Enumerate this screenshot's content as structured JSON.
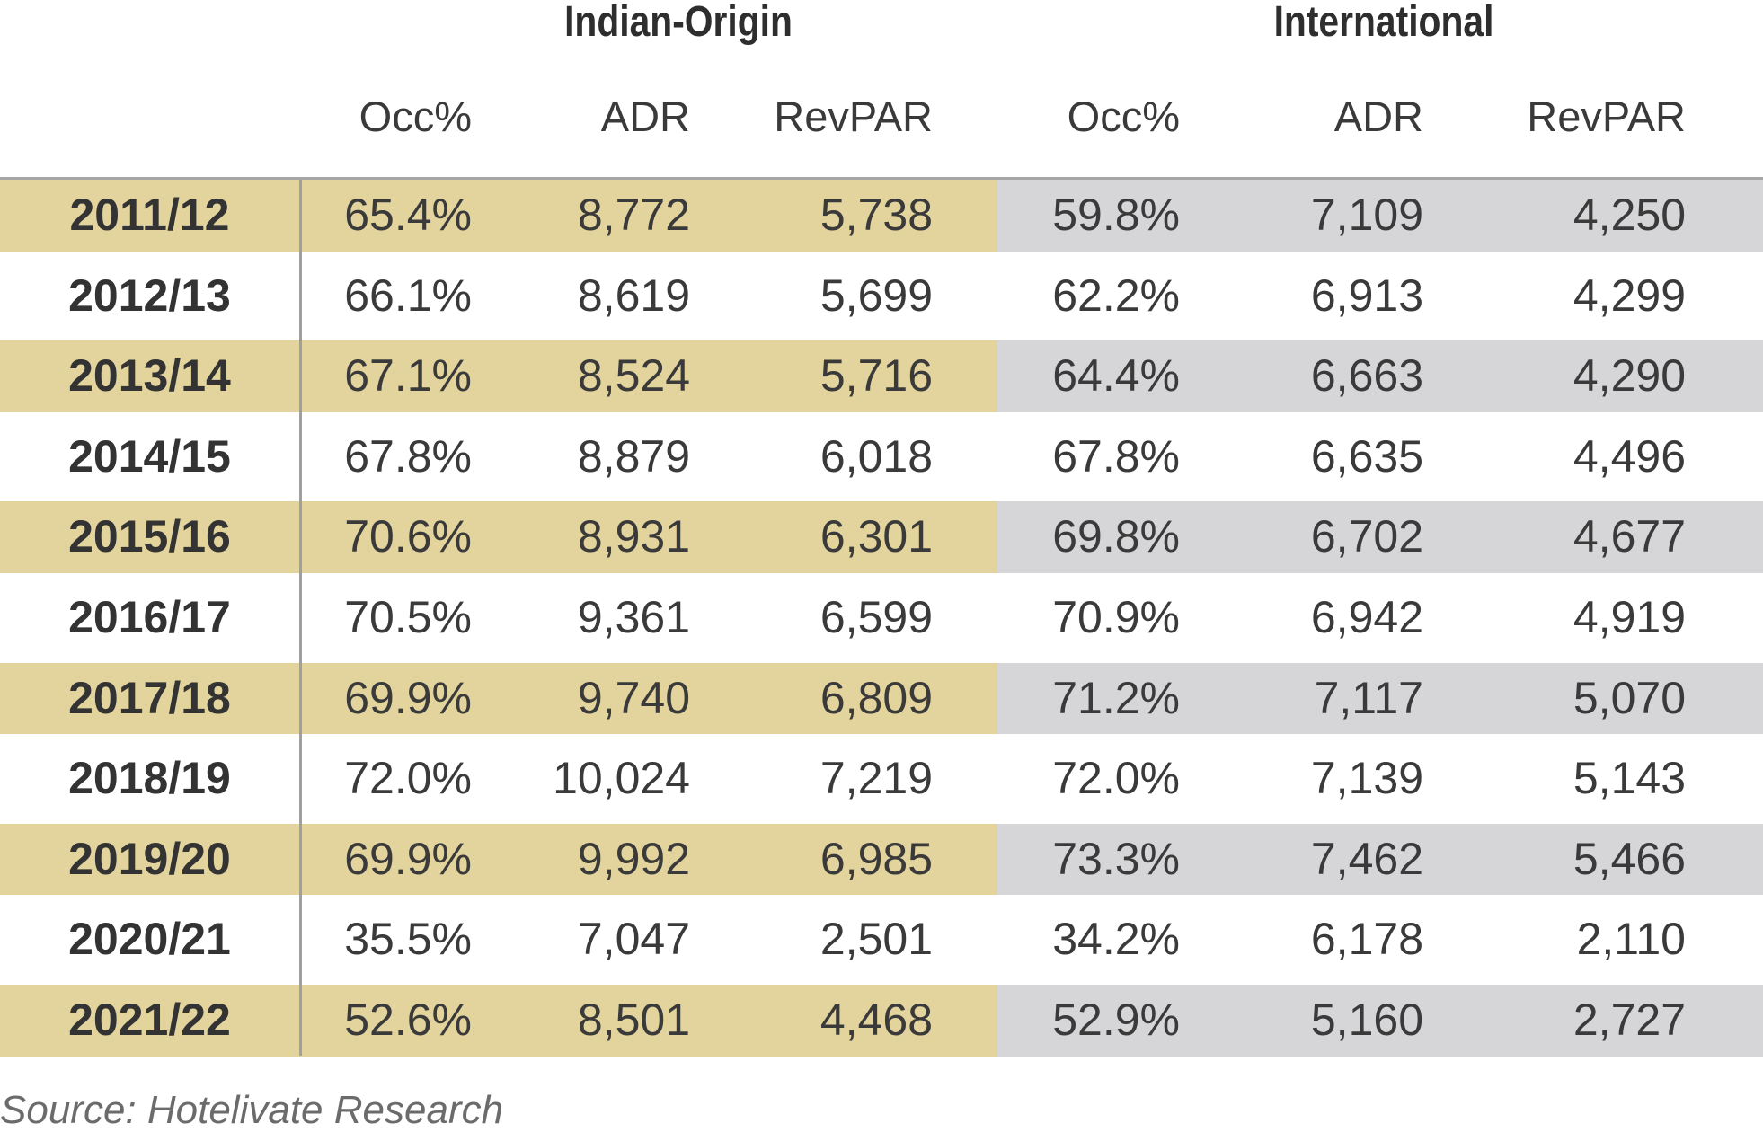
{
  "chart_data": {
    "type": "table",
    "groups": [
      "Indian-Origin",
      "International"
    ],
    "columns": [
      "Occ%",
      "ADR",
      "RevPAR",
      "Occ%",
      "ADR",
      "RevPAR"
    ],
    "rows": [
      {
        "year": "2011/12",
        "values": [
          "65.4%",
          "8,772",
          "5,738",
          "59.8%",
          "7,109",
          "4,250"
        ]
      },
      {
        "year": "2012/13",
        "values": [
          "66.1%",
          "8,619",
          "5,699",
          "62.2%",
          "6,913",
          "4,299"
        ]
      },
      {
        "year": "2013/14",
        "values": [
          "67.1%",
          "8,524",
          "5,716",
          "64.4%",
          "6,663",
          "4,290"
        ]
      },
      {
        "year": "2014/15",
        "values": [
          "67.8%",
          "8,879",
          "6,018",
          "67.8%",
          "6,635",
          "4,496"
        ]
      },
      {
        "year": "2015/16",
        "values": [
          "70.6%",
          "8,931",
          "6,301",
          "69.8%",
          "6,702",
          "4,677"
        ]
      },
      {
        "year": "2016/17",
        "values": [
          "70.5%",
          "9,361",
          "6,599",
          "70.9%",
          "6,942",
          "4,919"
        ]
      },
      {
        "year": "2017/18",
        "values": [
          "69.9%",
          "9,740",
          "6,809",
          "71.2%",
          "7,117",
          "5,070"
        ]
      },
      {
        "year": "2018/19",
        "values": [
          "72.0%",
          "10,024",
          "7,219",
          "72.0%",
          "7,139",
          "5,143"
        ]
      },
      {
        "year": "2019/20",
        "values": [
          "69.9%",
          "9,992",
          "6,985",
          "73.3%",
          "7,462",
          "5,466"
        ]
      },
      {
        "year": "2020/21",
        "values": [
          "35.5%",
          "7,047",
          "2,501",
          "34.2%",
          "6,178",
          "2,110"
        ]
      },
      {
        "year": "2021/22",
        "values": [
          "52.6%",
          "8,501",
          "4,468",
          "52.9%",
          "5,160",
          "2,727"
        ]
      }
    ],
    "source": "Source: Hotelivate Research",
    "colors": {
      "indian_band": "#e3d49d",
      "international_band": "#d6d6d8",
      "rule": "#a6a6a6"
    }
  }
}
